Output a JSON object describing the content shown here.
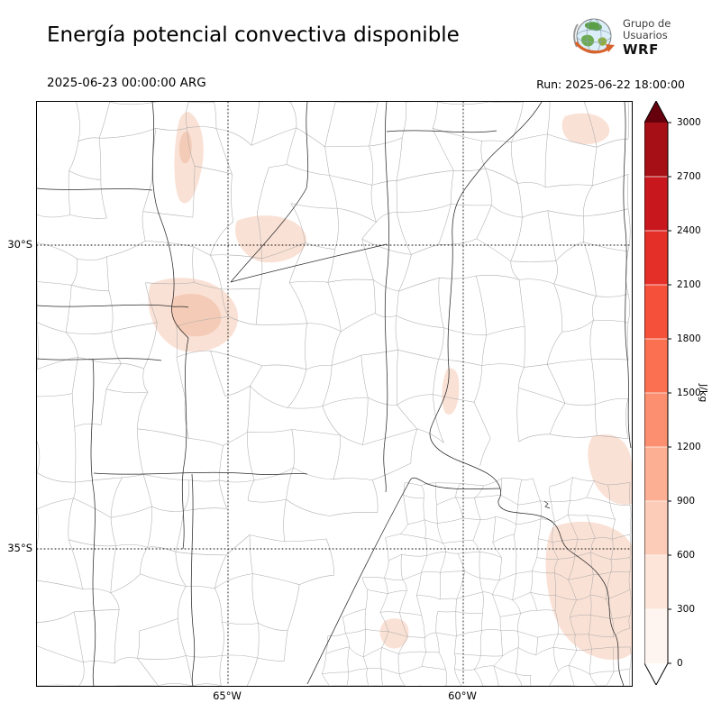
{
  "header": {
    "title": "Energía potencial convectiva disponible",
    "valid_time": "2025-06-23 00:00:00 ARG",
    "run_time": "Run: 2025-06-22 18:00:00",
    "logo": {
      "line1": "Grupo de",
      "line2": "Usuarios",
      "line3": "WRF"
    }
  },
  "map": {
    "lat_ticks": [
      "30°S",
      "35°S"
    ],
    "lon_ticks": [
      "65°W",
      "60°W"
    ]
  },
  "colorbar": {
    "unit": "J/kg",
    "tick_values": [
      0,
      300,
      600,
      900,
      1200,
      1500,
      1800,
      2100,
      2400,
      2700,
      3000
    ],
    "segment_colors": [
      "#fff5f0",
      "#fee5d9",
      "#fcccb8",
      "#fcaf93",
      "#fc8f6f",
      "#fb7050",
      "#f4503a",
      "#e32f27",
      "#c9181d",
      "#a50f15"
    ],
    "under_color": "#ffffff",
    "over_color": "#67000d",
    "shading_pale": "#f9ded0",
    "shading_mid": "#f3c6ae"
  },
  "chart_data": {
    "type": "heatmap",
    "title": "Energía potencial convectiva disponible",
    "unit": "J/kg",
    "valid_time": "2025-06-23 00:00:00 ARG",
    "run": "2025-06-22 18:00:00",
    "colorbar_levels": [
      0,
      300,
      600,
      900,
      1200,
      1500,
      1800,
      2100,
      2400,
      2700,
      3000
    ],
    "colorbar_extend": "both",
    "x_axis": {
      "tick_labels": [
        "65°W",
        "60°W"
      ]
    },
    "y_axis": {
      "tick_labels": [
        "30°S",
        "35°S"
      ]
    },
    "field_summary": "CAPE mostly near 0 J/kg over the domain; faint 0-600 J/kg patches near 28-29°S 66°W, 31°S 66-67°W, 30°S 64-65°W, 33.5°S 60.5°W and along the eastern edge between 33°S and 37°S"
  }
}
